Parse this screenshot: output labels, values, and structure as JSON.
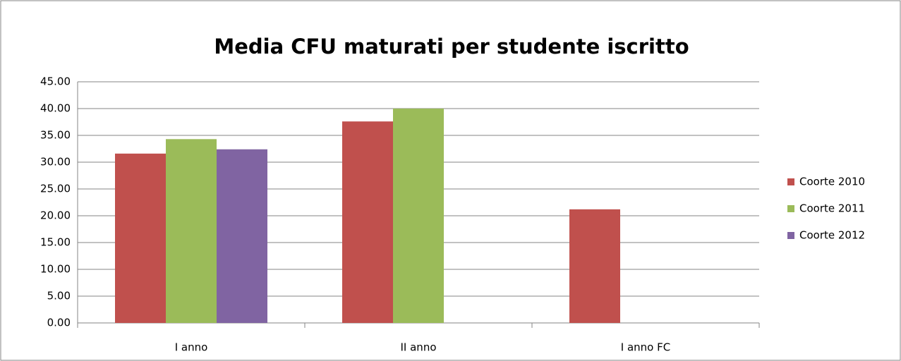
{
  "chart_data": {
    "type": "bar",
    "title": "Media CFU maturati per studente iscritto",
    "categories": [
      "I anno",
      "II anno",
      "I anno FC"
    ],
    "series": [
      {
        "name": "Coorte 2010",
        "color": "#c0504d",
        "values": [
          31.6,
          37.6,
          21.2
        ]
      },
      {
        "name": "Coorte 2011",
        "color": "#9bbb59",
        "values": [
          34.3,
          40.0,
          null
        ]
      },
      {
        "name": "Coorte 2012",
        "color": "#8064a2",
        "values": [
          32.4,
          null,
          null
        ]
      }
    ],
    "ylim": [
      0,
      45
    ],
    "yticks": [
      {
        "value": 0,
        "label": "0.00"
      },
      {
        "value": 5,
        "label": "5.00"
      },
      {
        "value": 10,
        "label": "10.00"
      },
      {
        "value": 15,
        "label": "15.00"
      },
      {
        "value": 20,
        "label": "20.00"
      },
      {
        "value": 25,
        "label": "25.00"
      },
      {
        "value": 30,
        "label": "30.00"
      },
      {
        "value": 35,
        "label": "35.00"
      },
      {
        "value": 40,
        "label": "40.00"
      },
      {
        "value": 45,
        "label": "45.00"
      }
    ],
    "grid": true,
    "legend": "right"
  }
}
